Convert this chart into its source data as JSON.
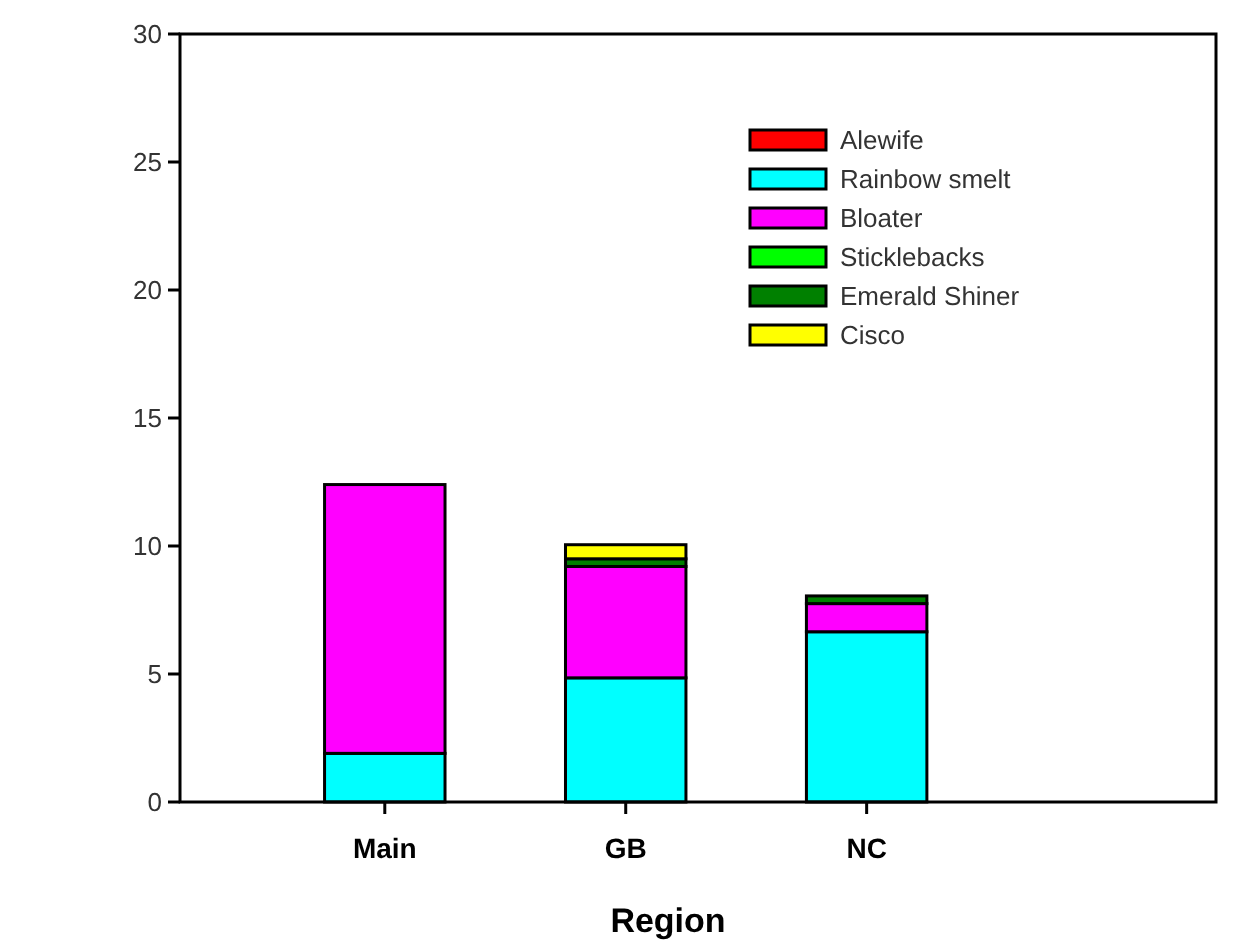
{
  "chart_data": {
    "type": "bar",
    "stacked": true,
    "xlabel": "Region",
    "categories": [
      "Main",
      "GB",
      "NC"
    ],
    "series": [
      {
        "name": "Alewife",
        "color": "#ff0000",
        "values": [
          null,
          0,
          0
        ]
      },
      {
        "name": "Rainbow smelt",
        "color": "#00ffff",
        "values": [
          1.9,
          4.85,
          6.65
        ]
      },
      {
        "name": "Bloater",
        "color": "#ff00ff",
        "values": [
          10.5,
          4.35,
          1.1
        ]
      },
      {
        "name": "Sticklebacks",
        "color": "#00ff00",
        "values": [
          0,
          0,
          0
        ]
      },
      {
        "name": "Emerald Shiner",
        "color": "#008000",
        "values": [
          0,
          0.3,
          0.3
        ]
      },
      {
        "name": "Cisco",
        "color": "#ffff00",
        "values": [
          0,
          0.55,
          0
        ]
      }
    ],
    "ylim": [
      0,
      30
    ],
    "yticks": [
      0,
      5,
      10,
      15,
      20,
      25,
      30
    ],
    "legend": "top right"
  }
}
